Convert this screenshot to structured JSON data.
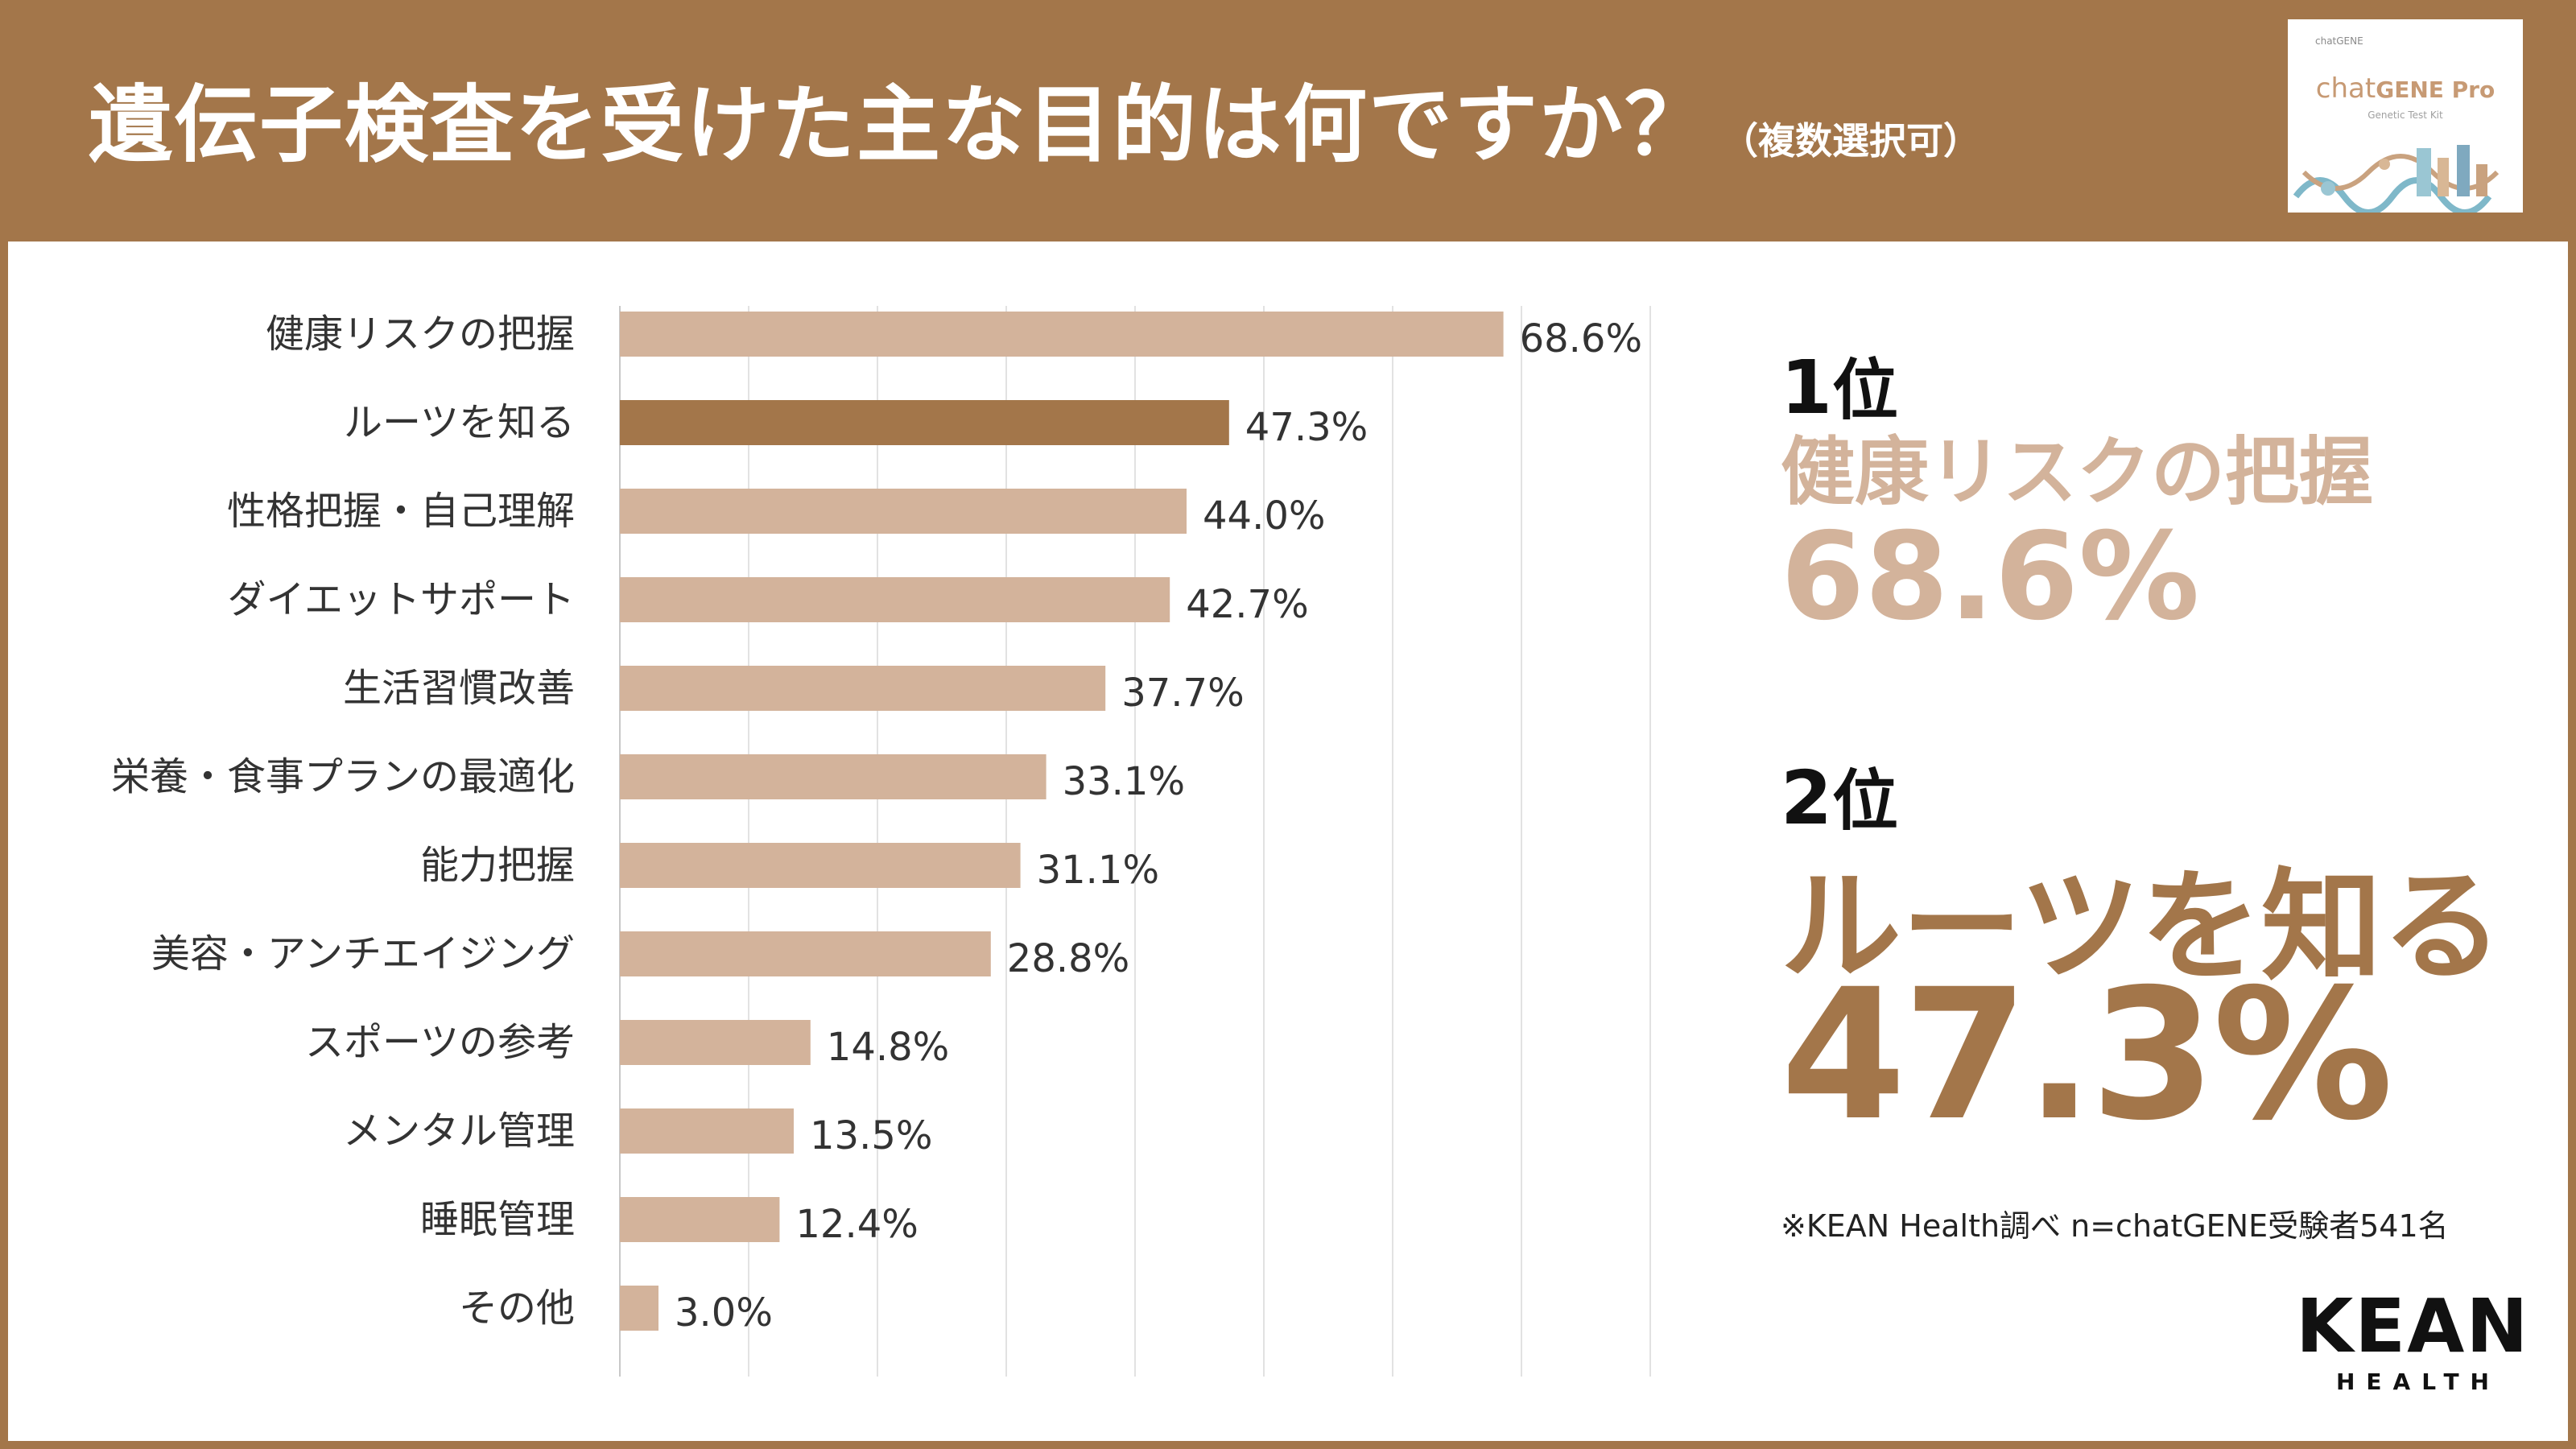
{
  "header": {
    "title": "遺伝子検査を受けた主な目的は何ですか？",
    "subtitle": "（複数選択可）"
  },
  "product": {
    "mini_brand": "chatGENE",
    "name_light": "chat",
    "name_bold": "GENE Pro",
    "tagline": "Genetic Test Kit"
  },
  "chart_data": {
    "type": "bar",
    "orientation": "horizontal",
    "title": "遺伝子検査を受けた主な目的は何ですか？",
    "categories": [
      "健康リスクの把握",
      "ルーツを知る",
      "性格把握・自己理解",
      "ダイエットサポート",
      "生活習慣改善",
      "栄養・食事プランの最適化",
      "能力把握",
      "美容・アンチエイジング",
      "スポーツの参考",
      "メンタル管理",
      "睡眠管理",
      "その他"
    ],
    "values": [
      68.6,
      47.3,
      44.0,
      42.7,
      37.7,
      33.1,
      31.1,
      28.8,
      14.8,
      13.5,
      12.4,
      3.0
    ],
    "labels": [
      "68.6%",
      "47.3%",
      "44.0%",
      "42.7%",
      "37.7%",
      "33.1%",
      "31.1%",
      "28.8%",
      "14.8%",
      "13.5%",
      "12.4%",
      "3.0%"
    ],
    "xlim": [
      0,
      80
    ],
    "grid": true,
    "highlight_index": 1,
    "colors": {
      "default": "#d3b39b",
      "highlight": "#a3764a",
      "grid": "#e2e2e2",
      "label": "#333333"
    }
  },
  "summary": {
    "first": {
      "rank_num": "1",
      "rank_unit": "位",
      "name": "健康リスクの把握",
      "value": "68.6%"
    },
    "second": {
      "rank_num": "2",
      "rank_unit": "位",
      "name": "ルーツを知る",
      "value": "47.3%"
    },
    "note": "※KEAN Health調べ n=chatGENE受験者541名"
  },
  "logo": {
    "main": "KEAN",
    "sub": "HEALTH"
  },
  "colors": {
    "brand": "#a3764a",
    "light": "#d3b39b"
  }
}
